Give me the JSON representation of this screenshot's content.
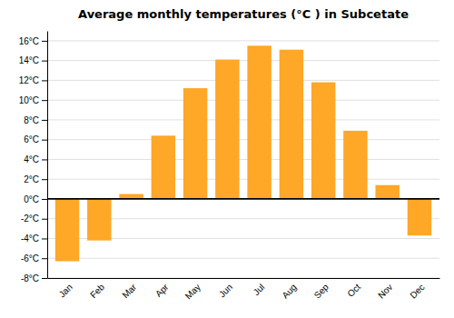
{
  "chart_data": {
    "type": "bar",
    "title": "Average monthly temperatures (°C ) in Subcetate",
    "categories": [
      "Jan",
      "Feb",
      "Mar",
      "Apr",
      "May",
      "Jun",
      "Jul",
      "Aug",
      "Sep",
      "Oct",
      "Nov",
      "Dec"
    ],
    "values": [
      -6.3,
      -4.2,
      0.5,
      6.4,
      11.2,
      14.1,
      15.5,
      15.1,
      11.8,
      6.9,
      1.4,
      -3.7
    ],
    "color": "#FFA726",
    "ylim": [
      -8,
      17
    ],
    "yticks": [
      {
        "value": -8,
        "label": "-8°C"
      },
      {
        "value": -6,
        "label": "-6°C"
      },
      {
        "value": -4,
        "label": "-4°C"
      },
      {
        "value": -2,
        "label": "-2°C"
      },
      {
        "value": 0,
        "label": "0°C"
      },
      {
        "value": 2,
        "label": "2°C"
      },
      {
        "value": 4,
        "label": "4°C"
      },
      {
        "value": 6,
        "label": "6°C"
      },
      {
        "value": 8,
        "label": "8°C"
      },
      {
        "value": 10,
        "label": "10°C"
      },
      {
        "value": 12,
        "label": "12°C"
      },
      {
        "value": 14,
        "label": "14°C"
      },
      {
        "value": 16,
        "label": "16°C"
      }
    ],
    "grid": true
  }
}
